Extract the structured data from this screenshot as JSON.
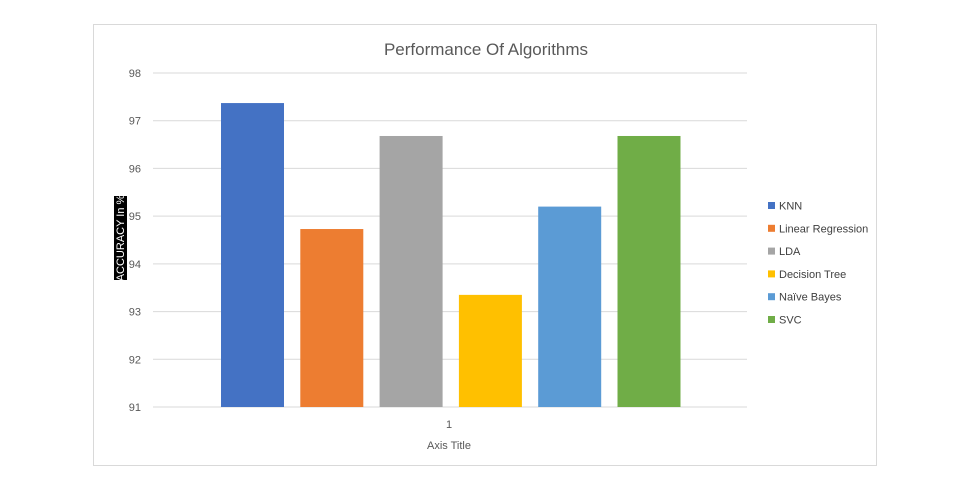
{
  "chart_data": {
    "type": "bar",
    "title": "Performance Of Algorithms",
    "xlabel": "Axis Title",
    "ylabel": "ACCURACY In %",
    "categories": [
      "1"
    ],
    "ylim": [
      91,
      98
    ],
    "yticks": [
      91,
      92,
      93,
      94,
      95,
      96,
      97,
      98
    ],
    "grid": true,
    "legend_position": "right",
    "series": [
      {
        "name": "KNN",
        "values": [
          97.37
        ],
        "color": "#4472c4"
      },
      {
        "name": "Linear Regression",
        "values": [
          94.73
        ],
        "color": "#ed7d31"
      },
      {
        "name": "LDA",
        "values": [
          96.68
        ],
        "color": "#a5a5a5"
      },
      {
        "name": "Decision Tree",
        "values": [
          93.35
        ],
        "color": "#ffc000"
      },
      {
        "name": "Naïve Bayes",
        "values": [
          95.2
        ],
        "color": "#5b9bd5"
      },
      {
        "name": "SVC",
        "values": [
          96.68
        ],
        "color": "#70ad47"
      }
    ]
  }
}
